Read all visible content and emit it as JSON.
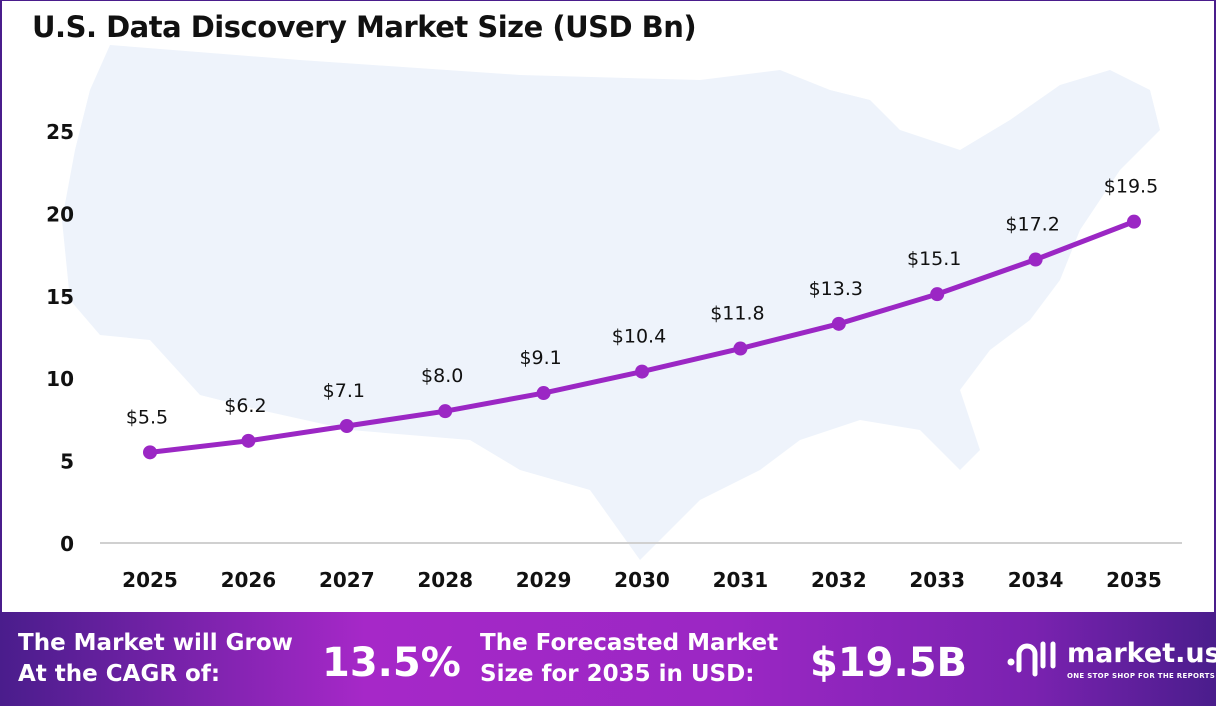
{
  "chart_data": {
    "type": "line",
    "title": "U.S. Data Discovery Market Size (USD Bn)",
    "categories": [
      "2025",
      "2026",
      "2027",
      "2028",
      "2029",
      "2030",
      "2031",
      "2032",
      "2033",
      "2034",
      "2035"
    ],
    "values": [
      5.5,
      6.2,
      7.1,
      8.0,
      9.1,
      10.4,
      11.8,
      13.3,
      15.1,
      17.2,
      19.5
    ],
    "data_labels": [
      "$5.5",
      "$6.2",
      "$7.1",
      "$8.0",
      "$9.1",
      "$10.4",
      "$11.8",
      "$13.3",
      "$15.1",
      "$17.2",
      "$19.5"
    ],
    "yticks": [
      0,
      5,
      10,
      15,
      20,
      25
    ],
    "ylim": [
      0,
      25
    ],
    "grid": false,
    "line_color": "#9b27c4",
    "background": "U.S. map silhouette"
  },
  "footer": {
    "cagr_label_1": "The Market will Grow",
    "cagr_label_2": "At the CAGR of:",
    "cagr_value": "13.5%",
    "forecast_label_1": "The Forecasted Market",
    "forecast_label_2": "Size for 2035 in USD:",
    "forecast_value": "$19.5B",
    "logo_name": "market.us",
    "logo_tagline": "ONE STOP SHOP FOR THE REPORTS"
  }
}
